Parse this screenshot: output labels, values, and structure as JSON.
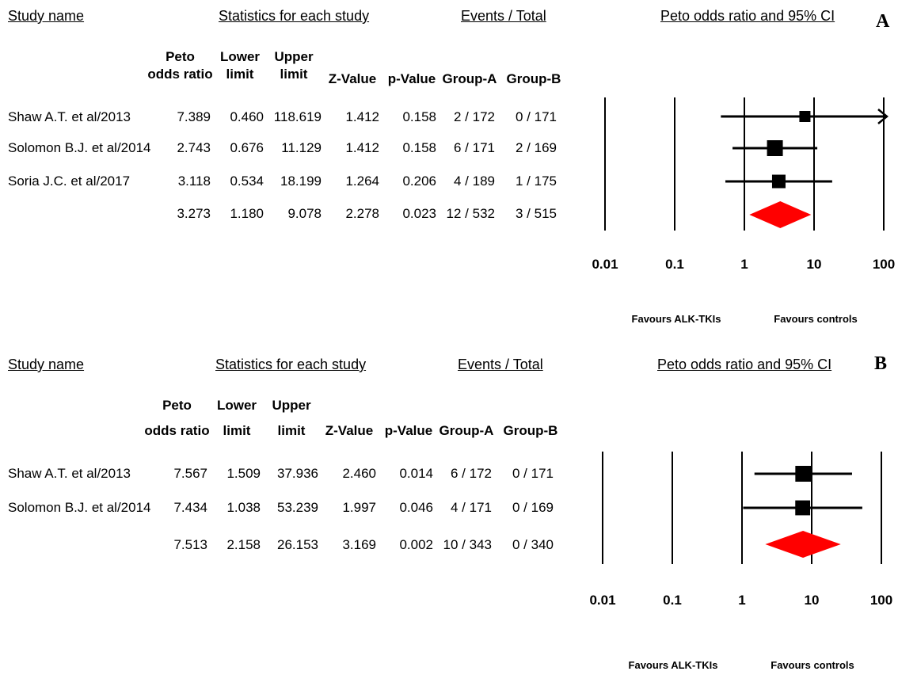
{
  "chart_data": [
    {
      "type": "forest",
      "panel_label": "A",
      "headers": {
        "study_name": "Study name",
        "statistics": "Statistics for each study",
        "events_total": "Events / Total",
        "plot_title": "Peto odds ratio and 95% CI"
      },
      "columns": [
        {
          "line1": "Peto",
          "line2": "odds ratio"
        },
        {
          "line1": "Lower",
          "line2": "limit"
        },
        {
          "line1": "Upper",
          "line2": "limit"
        },
        {
          "line1": "",
          "line2": "Z-Value"
        },
        {
          "line1": "",
          "line2": "p-Value"
        },
        {
          "line1": "",
          "line2": "Group-A"
        },
        {
          "line1": "",
          "line2": "Group-B"
        }
      ],
      "rows": [
        {
          "study": "Shaw A.T. et al/2013",
          "or": "7.389",
          "lower": "0.460",
          "upper": "118.619",
          "z": "1.412",
          "p": "0.158",
          "group_a": "2 / 172",
          "group_b": "0 / 171",
          "or_value": 7.389,
          "lower_value": 0.46,
          "upper_value": 118.619,
          "weight": 1,
          "pooled": false,
          "arrow_right": true
        },
        {
          "study": "Solomon B.J. et al/2014",
          "or": "2.743",
          "lower": "0.676",
          "upper": "11.129",
          "z": "1.412",
          "p": "0.158",
          "group_a": "6 / 171",
          "group_b": "2 / 169",
          "or_value": 2.743,
          "lower_value": 0.676,
          "upper_value": 11.129,
          "weight": 2,
          "pooled": false,
          "arrow_right": false
        },
        {
          "study": "Soria J.C. et al/2017",
          "or": "3.118",
          "lower": "0.534",
          "upper": "18.199",
          "z": "1.264",
          "p": "0.206",
          "group_a": "4 / 189",
          "group_b": "1 / 175",
          "or_value": 3.118,
          "lower_value": 0.534,
          "upper_value": 18.199,
          "weight": 1.5,
          "pooled": false,
          "arrow_right": false
        },
        {
          "study": "",
          "or": "3.273",
          "lower": "1.180",
          "upper": "9.078",
          "z": "2.278",
          "p": "0.023",
          "group_a": "12 / 532",
          "group_b": "3 / 515",
          "or_value": 3.273,
          "lower_value": 1.18,
          "upper_value": 9.078,
          "weight": 0,
          "pooled": true,
          "arrow_right": false
        }
      ],
      "x_scale": "log",
      "x_ticks": [
        {
          "value": 0.01,
          "label": "0.01"
        },
        {
          "value": 0.1,
          "label": "0.1"
        },
        {
          "value": 1,
          "label": "1"
        },
        {
          "value": 10,
          "label": "10"
        },
        {
          "value": 100,
          "label": "100"
        }
      ],
      "xlim": [
        0.01,
        100
      ],
      "favours_left": "Favours ALK-TKIs",
      "favours_right": "Favours controls",
      "pooled_color": "#ff0000",
      "marker_color": "#000000"
    },
    {
      "type": "forest",
      "panel_label": "B",
      "headers": {
        "study_name": "Study name",
        "statistics": "Statistics for each study",
        "events_total": "Events / Total",
        "plot_title": "Peto odds ratio and 95% CI"
      },
      "columns": [
        {
          "line1": "Peto",
          "line2": "odds ratio"
        },
        {
          "line1": "Lower",
          "line2": "limit"
        },
        {
          "line1": "Upper",
          "line2": "limit"
        },
        {
          "line1": "",
          "line2": "Z-Value"
        },
        {
          "line1": "",
          "line2": "p-Value"
        },
        {
          "line1": "",
          "line2": "Group-A"
        },
        {
          "line1": "",
          "line2": "Group-B"
        }
      ],
      "rows": [
        {
          "study": "Shaw A.T. et al/2013",
          "or": "7.567",
          "lower": "1.509",
          "upper": "37.936",
          "z": "2.460",
          "p": "0.014",
          "group_a": "6 / 172",
          "group_b": "0 / 171",
          "or_value": 7.567,
          "lower_value": 1.509,
          "upper_value": 37.936,
          "weight": 2,
          "pooled": false,
          "arrow_right": false
        },
        {
          "study": "Solomon B.J. et al/2014",
          "or": "7.434",
          "lower": "1.038",
          "upper": "53.239",
          "z": "1.997",
          "p": "0.046",
          "group_a": "4 / 171",
          "group_b": "0 / 169",
          "or_value": 7.434,
          "lower_value": 1.038,
          "upper_value": 53.239,
          "weight": 1.8,
          "pooled": false,
          "arrow_right": false
        },
        {
          "study": "",
          "or": "7.513",
          "lower": "2.158",
          "upper": "26.153",
          "z": "3.169",
          "p": "0.002",
          "group_a": "10 / 343",
          "group_b": "0 / 340",
          "or_value": 7.513,
          "lower_value": 2.158,
          "upper_value": 26.153,
          "weight": 0,
          "pooled": true,
          "arrow_right": false
        }
      ],
      "x_scale": "log",
      "x_ticks": [
        {
          "value": 0.01,
          "label": "0.01"
        },
        {
          "value": 0.1,
          "label": "0.1"
        },
        {
          "value": 1,
          "label": "1"
        },
        {
          "value": 10,
          "label": "10"
        },
        {
          "value": 100,
          "label": "100"
        }
      ],
      "xlim": [
        0.01,
        100
      ],
      "favours_left": "Favours ALK-TKIs",
      "favours_right": "Favours controls",
      "pooled_color": "#ff0000",
      "marker_color": "#000000"
    }
  ]
}
